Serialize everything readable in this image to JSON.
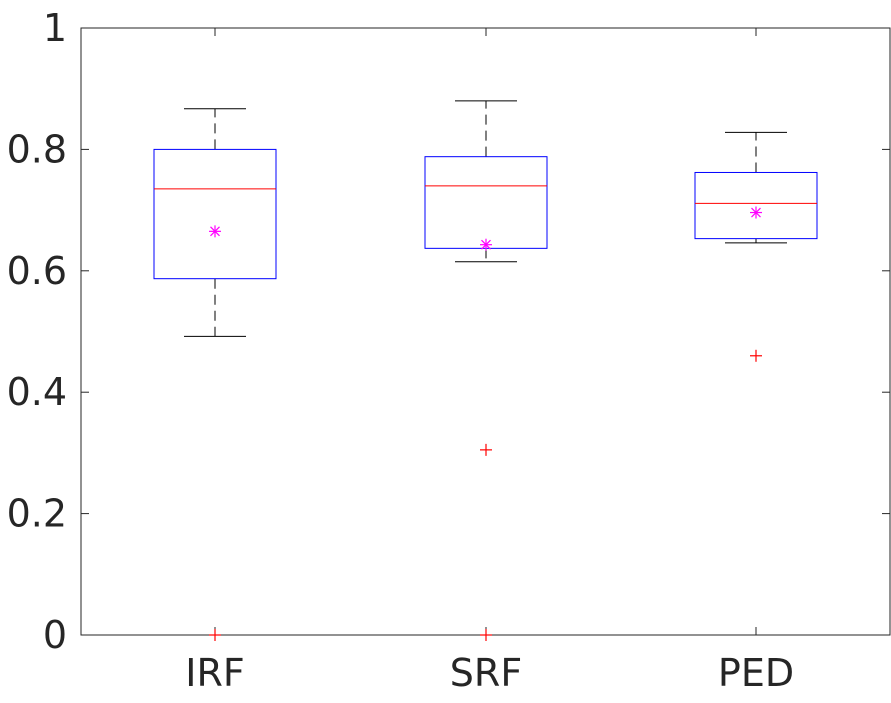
{
  "chart_data": {
    "type": "box",
    "title": "",
    "xlabel": "",
    "ylabel": "",
    "ylim": [
      0,
      1
    ],
    "yticks": [
      0,
      0.2,
      0.4,
      0.6,
      0.8,
      1
    ],
    "ytick_labels": [
      "0",
      "0.2",
      "0.4",
      "0.6",
      "0.8",
      "1"
    ],
    "grid": false,
    "categories": [
      "IRF",
      "SRF",
      "PED"
    ],
    "boxes": [
      {
        "category": "IRF",
        "whisker_low": 0.492,
        "q1": 0.587,
        "median": 0.735,
        "q3": 0.8,
        "whisker_high": 0.867,
        "mean": 0.665,
        "outliers": [
          0.0
        ]
      },
      {
        "category": "SRF",
        "whisker_low": 0.615,
        "q1": 0.637,
        "median": 0.74,
        "q3": 0.788,
        "whisker_high": 0.88,
        "mean": 0.643,
        "outliers": [
          0.305,
          0.0
        ]
      },
      {
        "category": "PED",
        "whisker_low": 0.646,
        "q1": 0.653,
        "median": 0.711,
        "q3": 0.762,
        "whisker_high": 0.828,
        "mean": 0.696,
        "outliers": [
          0.46
        ]
      }
    ],
    "colors": {
      "box": "#0000ff",
      "median": "#ff0000",
      "whisker": "#000000",
      "mean_marker": "#ff00ff",
      "outlier": "#ff0000",
      "axes": "#262626"
    }
  }
}
